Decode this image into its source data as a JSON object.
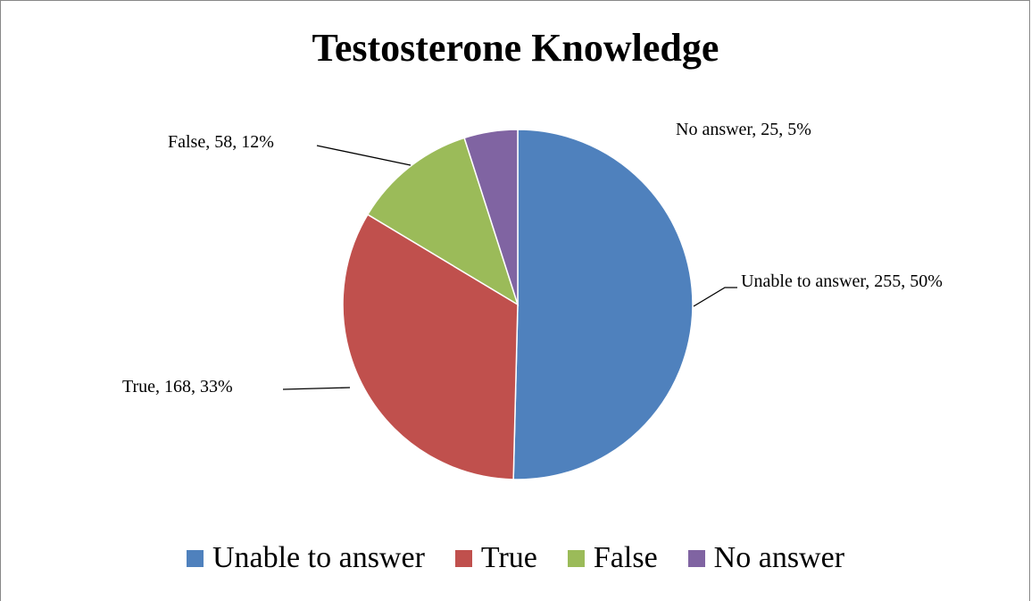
{
  "chart_data": {
    "type": "pie",
    "title": "Testosterone Knowledge",
    "categories": [
      "Unable to answer",
      "True",
      "False",
      "No answer"
    ],
    "values": [
      255,
      168,
      58,
      25
    ],
    "value_labels": [
      "Unable to answer, 255, 50%",
      "True, 168, 33%",
      "False, 58, 12%",
      "No answer, 25, 5%"
    ],
    "colors": [
      "#4f81bd",
      "#c0504d",
      "#9bbb59",
      "#8064a2"
    ],
    "legend": "bottom"
  }
}
